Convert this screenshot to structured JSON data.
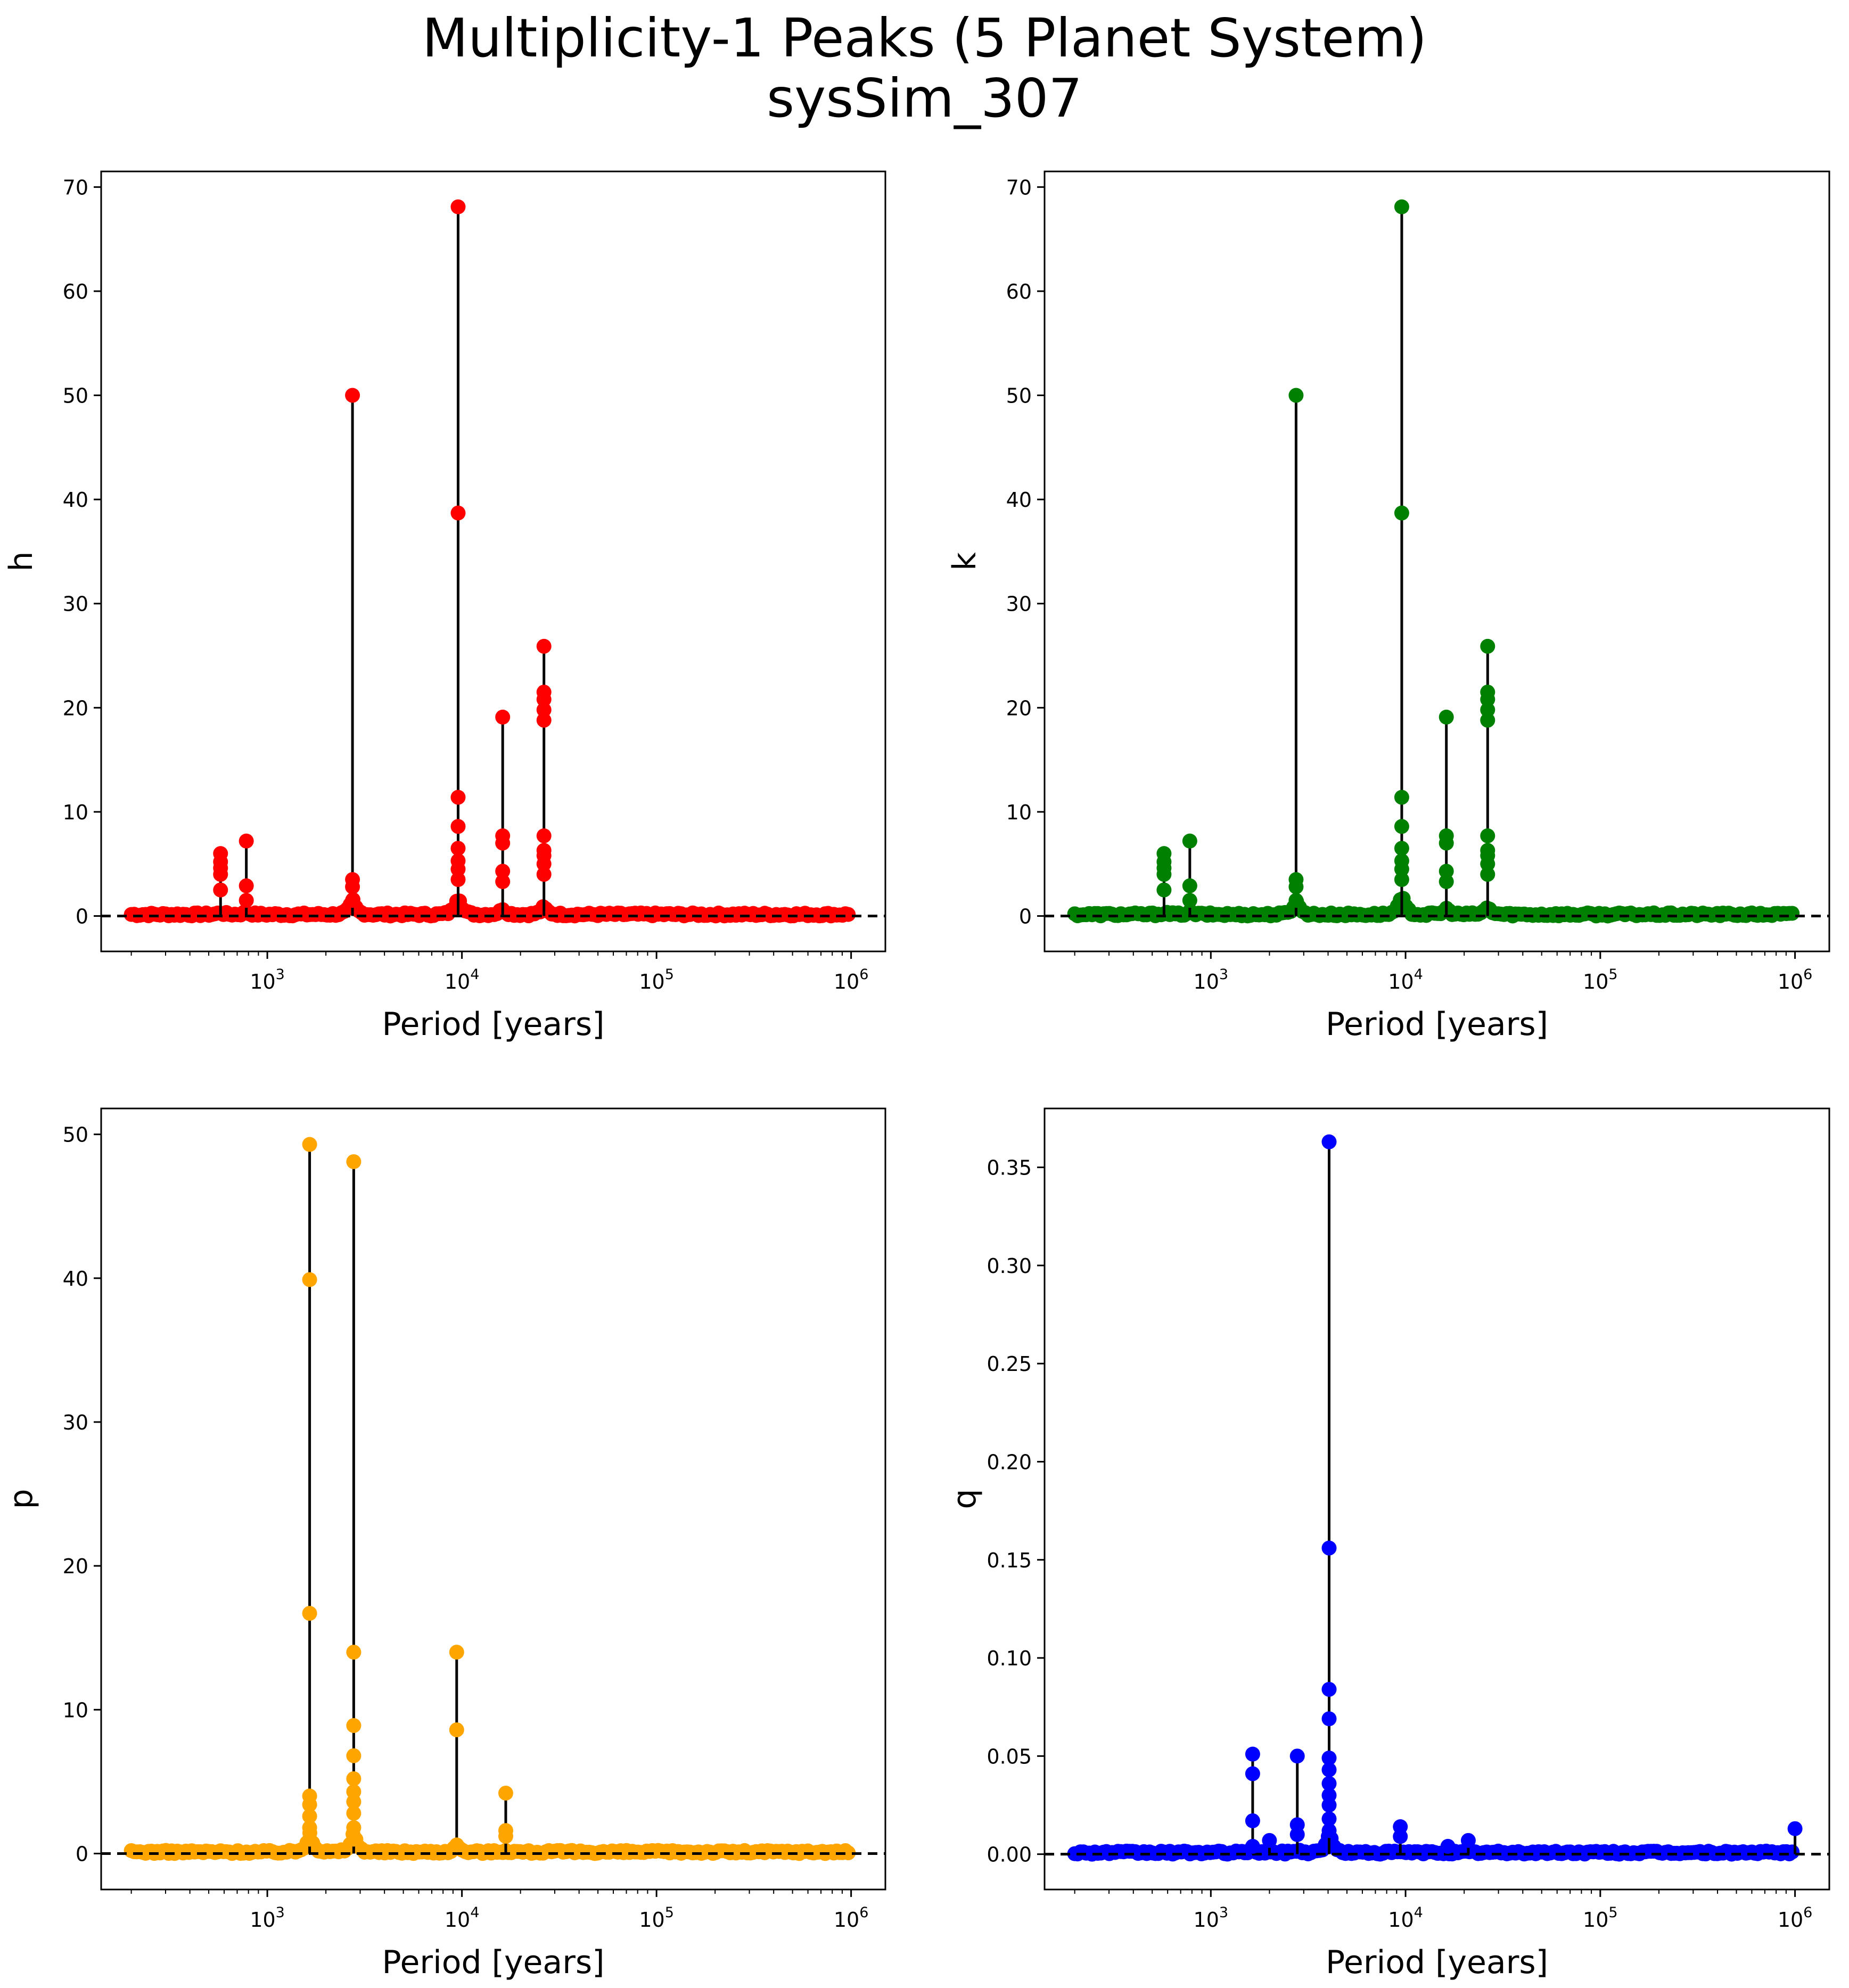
{
  "title": "Multiplicity-1 Peaks (5 Planet System)",
  "subtitle": "sysSim_307",
  "chart_data": [
    {
      "type": "scatter",
      "ylabel": "h",
      "xlabel": "Period [years]",
      "xscale": "log",
      "xlim": [
        140,
        1500000
      ],
      "ylim": [
        -3.4,
        71.5
      ],
      "yticks": [
        0,
        10,
        20,
        30,
        40,
        50,
        60,
        70
      ],
      "ytick_labels": [
        "0",
        "10",
        "20",
        "30",
        "40",
        "50",
        "60",
        "70"
      ],
      "xticks": [
        1000,
        10000,
        100000,
        1000000
      ],
      "xtick_labels": [
        [
          "10",
          "3"
        ],
        [
          "10",
          "4"
        ],
        [
          "10",
          "5"
        ],
        [
          "10",
          "6"
        ]
      ],
      "color": "#ff0000",
      "baseline": 0,
      "range": [
        200,
        1000000
      ],
      "peaks": [
        {
          "x": 575,
          "y": 6.0,
          "extra": [
            5.2,
            4.6,
            4.0,
            2.5
          ]
        },
        {
          "x": 780,
          "y": 7.2,
          "extra": [
            2.9,
            1.5
          ]
        },
        {
          "x": 2740,
          "y": 50.0,
          "extra": [
            3.5,
            2.8,
            1.5
          ]
        },
        {
          "x": 9560,
          "y": 68.1,
          "extra": [
            38.7,
            11.4,
            8.6,
            6.5,
            5.3,
            4.5,
            3.5
          ]
        },
        {
          "x": 16200,
          "y": 19.1,
          "extra": [
            7.7,
            7.0,
            4.3,
            3.3
          ]
        },
        {
          "x": 26400,
          "y": 25.9,
          "extra": [
            21.5,
            20.8,
            19.8,
            18.8,
            7.7,
            6.3,
            5.8,
            5.0,
            4.0
          ]
        }
      ]
    },
    {
      "type": "scatter",
      "ylabel": "k",
      "xlabel": "Period [years]",
      "xscale": "log",
      "xlim": [
        140,
        1500000
      ],
      "ylim": [
        -3.4,
        71.5
      ],
      "yticks": [
        0,
        10,
        20,
        30,
        40,
        50,
        60,
        70
      ],
      "ytick_labels": [
        "0",
        "10",
        "20",
        "30",
        "40",
        "50",
        "60",
        "70"
      ],
      "xticks": [
        1000,
        10000,
        100000,
        1000000
      ],
      "xtick_labels": [
        [
          "10",
          "3"
        ],
        [
          "10",
          "4"
        ],
        [
          "10",
          "5"
        ],
        [
          "10",
          "6"
        ]
      ],
      "color": "#008000",
      "baseline": 0,
      "range": [
        200,
        1000000
      ],
      "peaks": [
        {
          "x": 575,
          "y": 6.0,
          "extra": [
            5.2,
            4.6,
            4.0,
            2.5
          ]
        },
        {
          "x": 780,
          "y": 7.2,
          "extra": [
            2.9,
            1.5
          ]
        },
        {
          "x": 2740,
          "y": 50.0,
          "extra": [
            3.5,
            2.8,
            1.5
          ]
        },
        {
          "x": 9560,
          "y": 68.1,
          "extra": [
            38.7,
            11.4,
            8.6,
            6.5,
            5.3,
            4.5,
            3.5
          ]
        },
        {
          "x": 16200,
          "y": 19.1,
          "extra": [
            7.7,
            7.0,
            4.3,
            3.3
          ]
        },
        {
          "x": 26400,
          "y": 25.9,
          "extra": [
            21.5,
            20.8,
            19.8,
            18.8,
            7.7,
            6.3,
            5.8,
            5.0,
            4.0
          ]
        }
      ]
    },
    {
      "type": "scatter",
      "ylabel": "p",
      "xlabel": "Period [years]",
      "xscale": "log",
      "xlim": [
        140,
        1500000
      ],
      "ylim": [
        -2.5,
        51.8
      ],
      "yticks": [
        0,
        10,
        20,
        30,
        40,
        50
      ],
      "ytick_labels": [
        "0",
        "10",
        "20",
        "30",
        "40",
        "50"
      ],
      "xticks": [
        1000,
        10000,
        100000,
        1000000
      ],
      "xtick_labels": [
        [
          "10",
          "3"
        ],
        [
          "10",
          "4"
        ],
        [
          "10",
          "5"
        ],
        [
          "10",
          "6"
        ]
      ],
      "color": "#ffa500",
      "baseline": 0,
      "range": [
        200,
        1000000
      ],
      "peaks": [
        {
          "x": 1650,
          "y": 49.3,
          "extra": [
            39.9,
            16.7,
            4.0,
            3.4,
            2.6,
            1.8,
            1.0
          ]
        },
        {
          "x": 2780,
          "y": 48.1,
          "extra": [
            14.0,
            8.9,
            6.8,
            5.2,
            4.3,
            3.6,
            2.8,
            1.8,
            1.0
          ]
        },
        {
          "x": 9400,
          "y": 14.0,
          "extra": [
            8.6,
            0.6
          ]
        },
        {
          "x": 16800,
          "y": 4.2,
          "extra": [
            1.6,
            1.2
          ]
        }
      ]
    },
    {
      "type": "scatter",
      "ylabel": "q",
      "xlabel": "Period [years]",
      "xscale": "log",
      "xlim": [
        140,
        1500000
      ],
      "ylim": [
        -0.018,
        0.38
      ],
      "yticks": [
        0,
        0.05,
        0.1,
        0.15,
        0.2,
        0.25,
        0.3,
        0.35
      ],
      "ytick_labels": [
        "0.00",
        "0.05",
        "0.10",
        "0.15",
        "0.20",
        "0.25",
        "0.30",
        "0.35"
      ],
      "xticks": [
        1000,
        10000,
        100000,
        1000000
      ],
      "xtick_labels": [
        [
          "10",
          "3"
        ],
        [
          "10",
          "4"
        ],
        [
          "10",
          "5"
        ],
        [
          "10",
          "6"
        ]
      ],
      "color": "#0000ff",
      "baseline": 0,
      "range": [
        200,
        1000000
      ],
      "peaks": [
        {
          "x": 1640,
          "y": 0.051,
          "extra": [
            0.041,
            0.017,
            0.004
          ]
        },
        {
          "x": 2000,
          "y": 0.007,
          "extra": []
        },
        {
          "x": 2780,
          "y": 0.05,
          "extra": [
            0.015,
            0.01
          ]
        },
        {
          "x": 4050,
          "y": 0.363,
          "extra": [
            0.156,
            0.084,
            0.069,
            0.049,
            0.043,
            0.036,
            0.03,
            0.025,
            0.018,
            0.012
          ]
        },
        {
          "x": 9400,
          "y": 0.014,
          "extra": [
            0.009
          ]
        },
        {
          "x": 16500,
          "y": 0.004,
          "extra": []
        },
        {
          "x": 21000,
          "y": 0.007,
          "extra": []
        },
        {
          "x": 1000000,
          "y": 0.013,
          "extra": []
        }
      ]
    }
  ]
}
